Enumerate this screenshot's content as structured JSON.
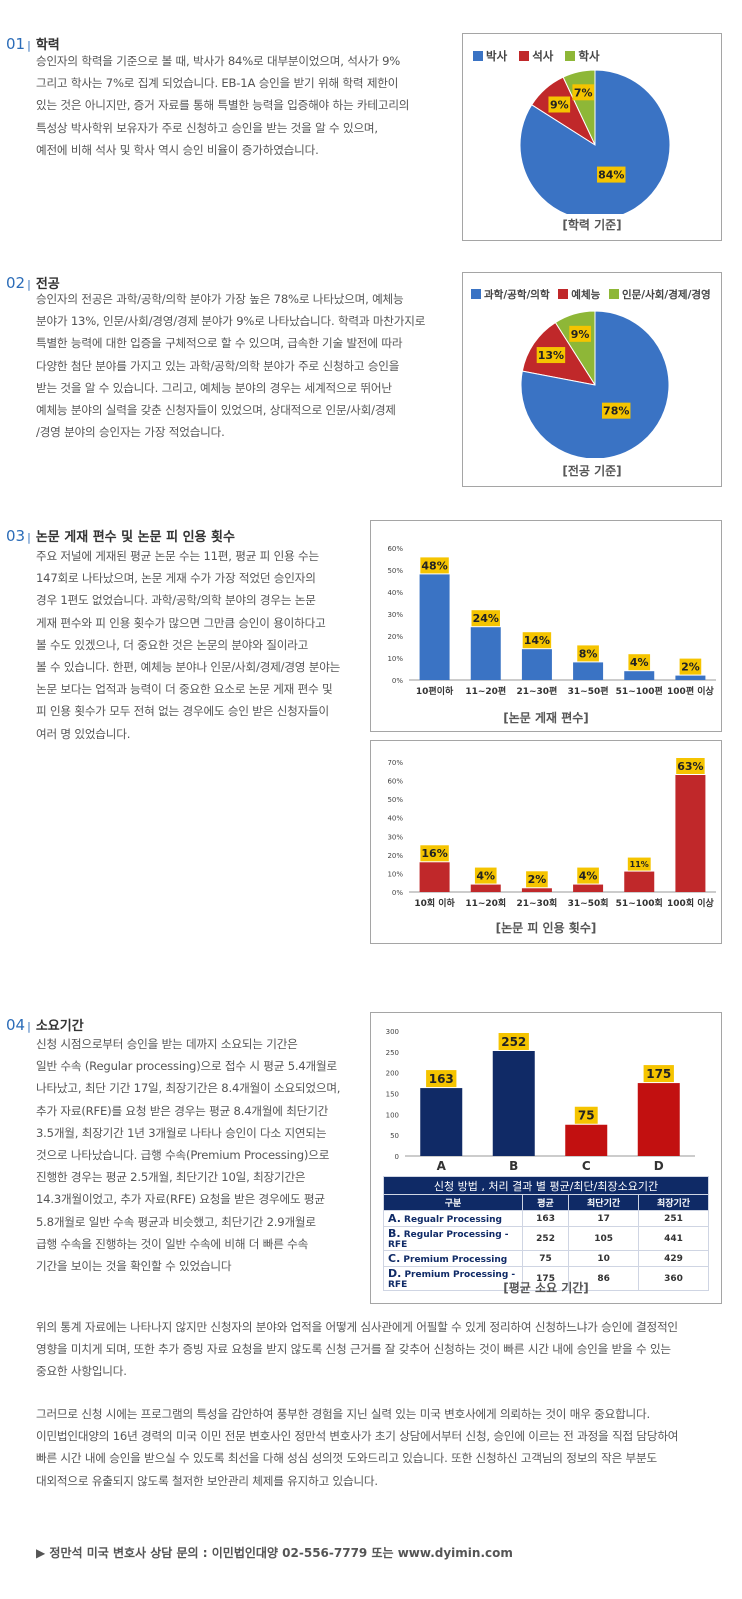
{
  "sections": [
    {
      "num": "01",
      "title": "학력",
      "lines": [
        "승인자의 학력을 기준으로 볼 때, 박사가 84%로 대부분이었으며, 석사가 9%",
        "그리고 학사는 7%로 집계 되었습니다. EB-1A 승인을 받기 위해 학력 제한이",
        "있는 것은 아니지만, 증거 자료를 통해 특별한 능력을 입증해야 하는 카테고리의",
        "특성상 박사학위 보유자가 주로 신청하고 승인을 받는 것을 알 수 있으며,",
        "예전에 비해 석사 및 학사 역시 승인 비율이 증가하였습니다."
      ]
    },
    {
      "num": "02",
      "title": "전공",
      "lines": [
        "승인자의 전공은 과학/공학/의학 분야가 가장 높은 78%로 나타났으며, 예체능",
        "분야가 13%, 인문/사회/경영/경제 분야가 9%로 나타났습니다. 학력과 마찬가지로",
        "특별한 능력에 대한 입증을 구체적으로 할 수 있으며, 급속한 기술 발전에 따라",
        "다양한 첨단 분야를 가지고 있는 과학/공학/의학 분야가 주로 신청하고 승인을",
        "받는 것을 알 수 있습니다. 그리고, 예체능 분야의 경우는 세계적으로 뛰어난",
        "예체능 분야의 실력을 갖춘 신청자들이 있었으며, 상대적으로 인문/사회/경제",
        "/경영 분야의 승인자는 가장 적었습니다."
      ]
    },
    {
      "num": "03",
      "title": "논문 게재 편수 및 논문 피 인용 횟수",
      "lines": [
        "주요 저널에 게재된 평균 논문 수는 11편, 평균 피 인용 수는",
        "147회로 나타났으며, 논문 게재 수가 가장 적었던 승인자의",
        "경우 1편도 없었습니다. 과학/공학/의학 분야의 경우는 논문",
        "게재 편수와 피 인용 횟수가 많으면 그만큼 승인이 용이하다고",
        "볼 수도 있겠으나, 더 중요한 것은 논문의 분야와 질이라고",
        "볼 수 있습니다. 한편, 예체능 분야나 인문/사회/경제/경영 분야는",
        "논문 보다는 업적과 능력이 더 중요한 요소로 논문 게재 편수 및",
        "피 인용 횟수가 모두 전혀 없는 경우에도 승인 받은 신청자들이",
        "여러 명 있었습니다."
      ]
    },
    {
      "num": "04",
      "title": "소요기간",
      "lines": [
        "신청 시점으로부터 승인을 받는 데까지 소요되는 기간은",
        "일반 수속 (Regular processing)으로 접수 시 평균 5.4개월로",
        "나타났고, 최단 기간 17일, 최장기간은 8.4개월이 소요되었으며,",
        "추가 자료(RFE)를 요청 받은 경우는 평균 8.4개월에 최단기간",
        "3.5개월, 최장기간 1년 3개월로 나타나 승인이 다소 지연되는",
        "것으로 나타났습니다. 급행 수속(Premium Processing)으로",
        "진행한 경우는 평균 2.5개월, 최단기간 10일, 최장기간은",
        "14.3개월이었고, 추가 자료(RFE) 요청을 받은 경우에도 평균",
        "5.8개월로 일반 수속 평균과 비슷했고, 최단기간 2.9개월로",
        "급행 수속을 진행하는 것이 일반 수속에 비해 더 빠른 수속",
        "기간을 보이는 것을 확인할 수 있었습니다"
      ]
    }
  ],
  "closing": {
    "p1": [
      "위의 통계 자료에는 나타나지 않지만 신청자의 분야와 업적을 어떻게 심사관에게 어필할 수 있게 정리하여 신청하느냐가 승인에 결정적인",
      "영향을 미치게 되며, 또한 추가 증빙 자료 요청을 받지 않도록 신청 근거를 잘 갖추어 신청하는 것이 빠른 시간 내에 승인을 받을 수 있는",
      "중요한 사항입니다."
    ],
    "p2": [
      "그러므로 신청 시에는 프로그램의 특성을 감안하여 풍부한 경험을 지닌 실력 있는 미국 변호사에게 의뢰하는 것이 매우 중요합니다.",
      "이민법인대양의 16년 경력의 미국 이민 전문 변호사인 정만석 변호사가 초기 상담에서부터 신청, 승인에 이르는 전 과정을 직접 담당하여",
      "빠른 시간 내에 승인을 받으실 수 있도록 최선을 다해 성심 성의껏 도와드리고 있습니다. 또한 신청하신 고객님의 정보의 작은 부분도",
      "대외적으로 유출되지 않도록 철저한 보안관리 체제를 유지하고 있습니다."
    ],
    "contact": "▶ 정만석 미국 변호사 상담 문의 : 이민법인대양 02-556-7779 또는 www.dyimin.com"
  },
  "chart_data": [
    {
      "type": "pie",
      "title": "",
      "caption": "[학력 기준]",
      "categories": [
        "박사",
        "석사",
        "학사"
      ],
      "values": [
        84,
        9,
        7
      ],
      "labels": [
        "84%",
        "9%",
        "7%"
      ],
      "colors": [
        "#3a73c4",
        "#c0282a",
        "#8eb737"
      ],
      "legend": "top-left"
    },
    {
      "type": "pie",
      "title": "",
      "caption": "[전공 기준]",
      "categories": [
        "과학/공학/의학",
        "예체능",
        "인문/사회/경제/경영"
      ],
      "values": [
        78,
        13,
        9
      ],
      "labels": [
        "78%",
        "13%",
        "9%"
      ],
      "colors": [
        "#3a73c4",
        "#c0282a",
        "#8eb737"
      ],
      "legend": "top-left"
    },
    {
      "type": "bar",
      "title": "",
      "caption": "[논문 게재 편수]",
      "categories": [
        "10편이하",
        "11~20편",
        "21~30편",
        "31~50편",
        "51~100편",
        "100편 이상"
      ],
      "values": [
        48,
        24,
        14,
        8,
        4,
        2
      ],
      "labels": [
        "48%",
        "24%",
        "14%",
        "8%",
        "4%",
        "2%"
      ],
      "ylim": [
        0,
        60
      ],
      "yticks": [
        "0%",
        "10%",
        "20%",
        "30%",
        "40%",
        "50%",
        "60%"
      ],
      "color": "#3a73c4",
      "grid": false
    },
    {
      "type": "bar",
      "title": "",
      "caption": "[논문 피 인용 횟수]",
      "categories": [
        "10회 이하",
        "11~20회",
        "21~30회",
        "31~50회",
        "51~100회",
        "100회 이상"
      ],
      "values": [
        16,
        4,
        2,
        4,
        11,
        63
      ],
      "labels": [
        "16%",
        "4%",
        "2%",
        "4%",
        "11%",
        "63%"
      ],
      "ylim": [
        0,
        70
      ],
      "yticks": [
        "0%",
        "10%",
        "20%",
        "30%",
        "40%",
        "50%",
        "60%",
        "70%"
      ],
      "color": "#c0282a",
      "grid": false
    },
    {
      "type": "bar",
      "title": "",
      "caption": "[평균 소요 기간]",
      "categories": [
        "A",
        "B",
        "C",
        "D"
      ],
      "values": [
        163,
        252,
        75,
        175
      ],
      "labels": [
        "163",
        "252",
        "75",
        "175"
      ],
      "ylim": [
        0,
        300
      ],
      "yticks": [
        "0",
        "50",
        "100",
        "150",
        "200",
        "250",
        "300"
      ],
      "colors": [
        "#102a66",
        "#102a66",
        "#c21010",
        "#c21010"
      ],
      "grid": false
    },
    {
      "type": "table",
      "title": "신청 방법 , 처리 결과 별 평균/최단/최장소요기간",
      "columns": [
        "구분",
        "평균",
        "최단기간",
        "최장기간"
      ],
      "rows": [
        {
          "letter": "A.",
          "name": "Regualr Processing",
          "avg": "163",
          "min": "17",
          "max": "251"
        },
        {
          "letter": "B.",
          "name": "Regular Processing - RFE",
          "avg": "252",
          "min": "105",
          "max": "441"
        },
        {
          "letter": "C.",
          "name": "Premium Processing",
          "avg": "75",
          "min": "10",
          "max": "429"
        },
        {
          "letter": "D.",
          "name": "Premium Processing - RFE",
          "avg": "175",
          "min": "86",
          "max": "360"
        }
      ]
    }
  ]
}
